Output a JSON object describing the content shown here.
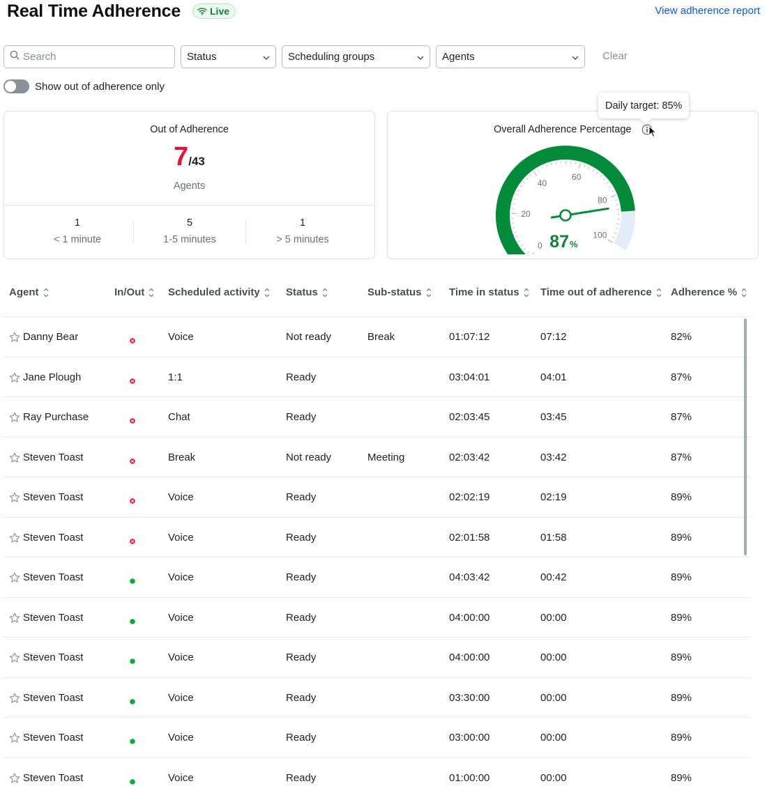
{
  "header": {
    "title": "Real Time Adherence",
    "live_label": "Live",
    "report_link": "View adherence report"
  },
  "filters": {
    "search_placeholder": "Search",
    "status_label": "Status",
    "groups_label": "Scheduling groups",
    "agents_label": "Agents",
    "clear_label": "Clear",
    "toggle_label": "Show out of adherence only",
    "toggle_on": false
  },
  "out_of_adherence": {
    "title": "Out of Adherence",
    "count": "7",
    "total": "/43",
    "unit_label": "Agents",
    "buckets": [
      {
        "count": "1",
        "label": "< 1 minute"
      },
      {
        "count": "5",
        "label": "1-5 minutes"
      },
      {
        "count": "1",
        "label": "> 5 minutes"
      }
    ]
  },
  "overall": {
    "title": "Overall Adherence Percentage",
    "tooltip": "Daily target: 85%",
    "value": "87",
    "unit": "%",
    "ticks": [
      "0",
      "20",
      "40",
      "60",
      "80",
      "100"
    ],
    "fill_fraction": 0.87,
    "target_fraction": 0.85,
    "colors": {
      "fill": "#008a3a",
      "remainder": "#e4ecf7",
      "value": "#12803b"
    }
  },
  "table": {
    "columns": [
      "Agent",
      "In/Out",
      "Scheduled activity",
      "Status",
      "Sub-status",
      "Time in status",
      "Time out of adherence",
      "Adherence %"
    ],
    "rows": [
      {
        "agent": "Danny Bear",
        "in": false,
        "activity": "Voice",
        "status": "Not ready",
        "substatus": "Break",
        "time_in_status": "01:07:12",
        "time_out": "07:12",
        "adherence": "82%"
      },
      {
        "agent": "Jane Plough",
        "in": false,
        "activity": "1:1",
        "status": "Ready",
        "substatus": "",
        "time_in_status": "03:04:01",
        "time_out": "04:01",
        "adherence": "87%"
      },
      {
        "agent": "Ray Purchase",
        "in": false,
        "activity": "Chat",
        "status": "Ready",
        "substatus": "",
        "time_in_status": "02:03:45",
        "time_out": "03:45",
        "adherence": "87%"
      },
      {
        "agent": "Steven Toast",
        "in": false,
        "activity": "Break",
        "status": "Not ready",
        "substatus": "Meeting",
        "time_in_status": "02:03:42",
        "time_out": "03:42",
        "adherence": "87%"
      },
      {
        "agent": "Steven Toast",
        "in": false,
        "activity": "Voice",
        "status": "Ready",
        "substatus": "",
        "time_in_status": "02:02:19",
        "time_out": "02:19",
        "adherence": "89%"
      },
      {
        "agent": "Steven Toast",
        "in": false,
        "activity": "Voice",
        "status": "Ready",
        "substatus": "",
        "time_in_status": "02:01:58",
        "time_out": "01:58",
        "adherence": "89%"
      },
      {
        "agent": "Steven Toast",
        "in": true,
        "activity": "Voice",
        "status": "Ready",
        "substatus": "",
        "time_in_status": "04:03:42",
        "time_out": "00:42",
        "adherence": "89%"
      },
      {
        "agent": "Steven Toast",
        "in": true,
        "activity": "Voice",
        "status": "Ready",
        "substatus": "",
        "time_in_status": "04:00:00",
        "time_out": "00:00",
        "adherence": "89%"
      },
      {
        "agent": "Steven Toast",
        "in": true,
        "activity": "Voice",
        "status": "Ready",
        "substatus": "",
        "time_in_status": "04:00:00",
        "time_out": "00:00",
        "adherence": "89%"
      },
      {
        "agent": "Steven Toast",
        "in": true,
        "activity": "Voice",
        "status": "Ready",
        "substatus": "",
        "time_in_status": "03:30:00",
        "time_out": "00:00",
        "adherence": "89%"
      },
      {
        "agent": "Steven Toast",
        "in": true,
        "activity": "Voice",
        "status": "Ready",
        "substatus": "",
        "time_in_status": "03:00:00",
        "time_out": "00:00",
        "adherence": "89%"
      },
      {
        "agent": "Steven Toast",
        "in": true,
        "activity": "Voice",
        "status": "Ready",
        "substatus": "",
        "time_in_status": "01:00:00",
        "time_out": "00:00",
        "adherence": "89%"
      }
    ]
  },
  "colors": {
    "accent_link": "#0b5cd5",
    "out_red": "#e0133b",
    "in_green": "#0fa83d"
  }
}
